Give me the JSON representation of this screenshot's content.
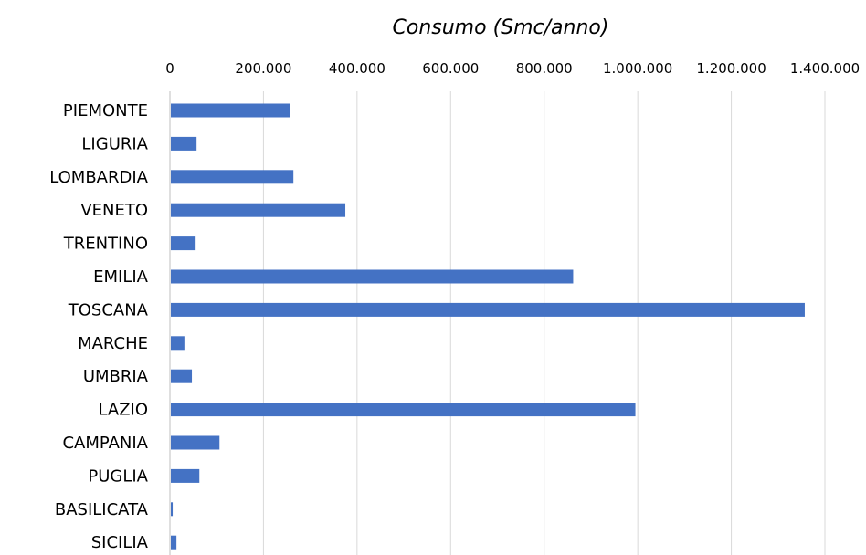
{
  "chart_data": {
    "type": "bar",
    "orientation": "horizontal",
    "title": "Consumo (Smc/anno)",
    "xlabel": "",
    "ylabel": "",
    "x_axis_position": "top",
    "xlim": [
      0,
      1400000
    ],
    "x_ticks": [
      0,
      200000,
      400000,
      600000,
      800000,
      1000000,
      1200000,
      1400000
    ],
    "x_tick_labels": [
      "0",
      "200.000",
      "400.000",
      "600.000",
      "800.000",
      "1.000.000",
      "1.200.000",
      "1.400.000"
    ],
    "grid": true,
    "legend": "none",
    "bar_color": "#4472c4",
    "grid_color": "#d9d9d9",
    "categories": [
      "PIEMONTE",
      "LIGURIA",
      "LOMBARDIA",
      "VENETO",
      "TRENTINO",
      "EMILIA",
      "TOSCANA",
      "MARCHE",
      "UMBRIA",
      "LAZIO",
      "CAMPANIA",
      "PUGLIA",
      "BASILICATA",
      "SICILIA"
    ],
    "values": [
      255000,
      55000,
      262000,
      373000,
      53000,
      860000,
      1355000,
      29000,
      45000,
      993000,
      104000,
      61000,
      4000,
      12000
    ]
  }
}
